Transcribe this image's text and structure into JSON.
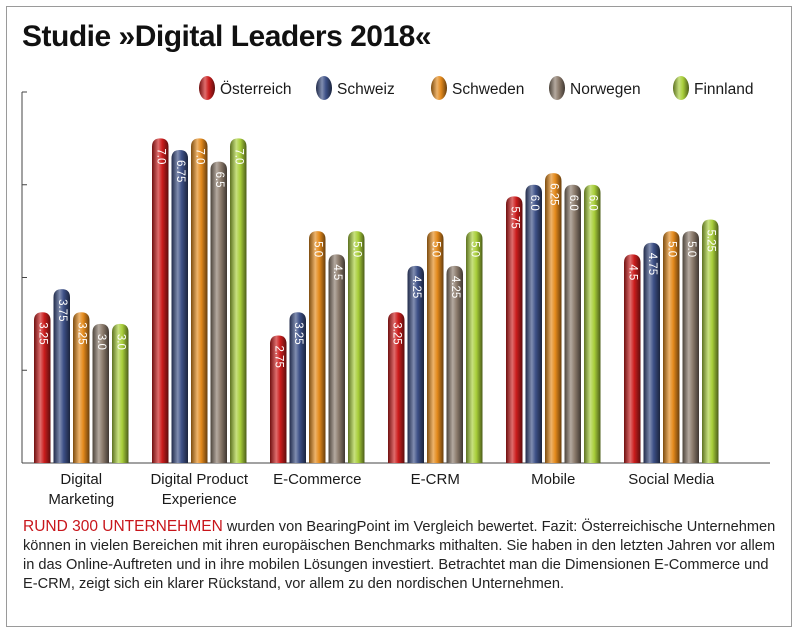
{
  "title": "Studie »Digital Leaders 2018«",
  "colors": {
    "Österreich": "#cc1d1d",
    "Schweiz": "#3c4f86",
    "Schweden": "#e48a1c",
    "Norwegen": "#8b7b6c",
    "Finnland": "#a9cf3a"
  },
  "chart_data": {
    "type": "bar",
    "title": "Studie »Digital Leaders 2018«",
    "categories": [
      "Digital Marketing",
      "Digital Product Experience",
      "E-Commerce",
      "E-CRM",
      "Mobile",
      "Social Media"
    ],
    "series": [
      {
        "name": "Österreich",
        "values": [
          3.25,
          7.0,
          2.75,
          3.25,
          5.75,
          4.5
        ],
        "labels": [
          "3.25",
          "7.0",
          "2.75",
          "3.25",
          "5.75",
          "4.5"
        ]
      },
      {
        "name": "Schweiz",
        "values": [
          3.75,
          6.75,
          3.25,
          4.25,
          6.0,
          4.75
        ],
        "labels": [
          "3.75",
          "6.75",
          "3.25",
          "4.25",
          "6.0",
          "4.75"
        ]
      },
      {
        "name": "Schweden",
        "values": [
          3.25,
          7.0,
          5.0,
          5.0,
          6.25,
          5.0
        ],
        "labels": [
          "3.25",
          "7.0",
          "5.0",
          "5.0",
          "6.25",
          "5.0"
        ]
      },
      {
        "name": "Norwegen",
        "values": [
          3.0,
          6.5,
          4.5,
          4.25,
          6.0,
          5.0
        ],
        "labels": [
          "3.0",
          "6.5",
          "4.5",
          "4.25",
          "6.0",
          "5.0"
        ]
      },
      {
        "name": "Finnland",
        "values": [
          3.0,
          7.0,
          5.0,
          5.0,
          6.0,
          5.25
        ],
        "labels": [
          "3.0",
          "7.0",
          "5.0",
          "5.0",
          "6.0",
          "5.25"
        ]
      }
    ],
    "ylim": [
      0,
      8
    ],
    "legend_position": "top-right",
    "grid": false
  },
  "caption": {
    "lead": "RUND 300 UNTERNEHMEN",
    "body": " wurden von BearingPoint im Vergleich bewertet. Fazit: Österreichische Unternehmen können in vielen Bereichen mit ihren europäischen Benchmarks mithalten. Sie haben in den letzten Jahren vor allem in das Online-Auftreten und in ihre mobilen Lösungen investiert. Betrachtet man die Dimensionen E-Commerce und E-CRM, zeigt sich ein klarer Rückstand, vor allem zu den nordischen Unternehmen."
  }
}
